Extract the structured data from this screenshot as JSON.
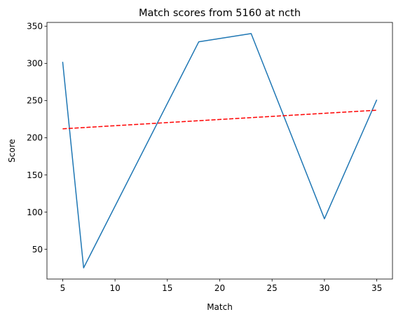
{
  "chart_data": {
    "type": "line",
    "title": "Match scores from 5160 at ncth",
    "xlabel": "Match",
    "ylabel": "Score",
    "xlim": [
      3.5,
      36.5
    ],
    "ylim": [
      10,
      355
    ],
    "xticks": [
      5,
      10,
      15,
      20,
      25,
      30,
      35
    ],
    "yticks": [
      50,
      100,
      150,
      200,
      250,
      300,
      350
    ],
    "grid": false,
    "series": [
      {
        "style": "solid",
        "color": "#1f77b4",
        "x": [
          5,
          7,
          18,
          23,
          30,
          35
        ],
        "y": [
          302,
          25,
          329,
          340,
          91,
          251
        ]
      },
      {
        "style": "dashed",
        "color": "#ff0000",
        "x": [
          5,
          35
        ],
        "y": [
          212,
          237
        ]
      }
    ]
  }
}
